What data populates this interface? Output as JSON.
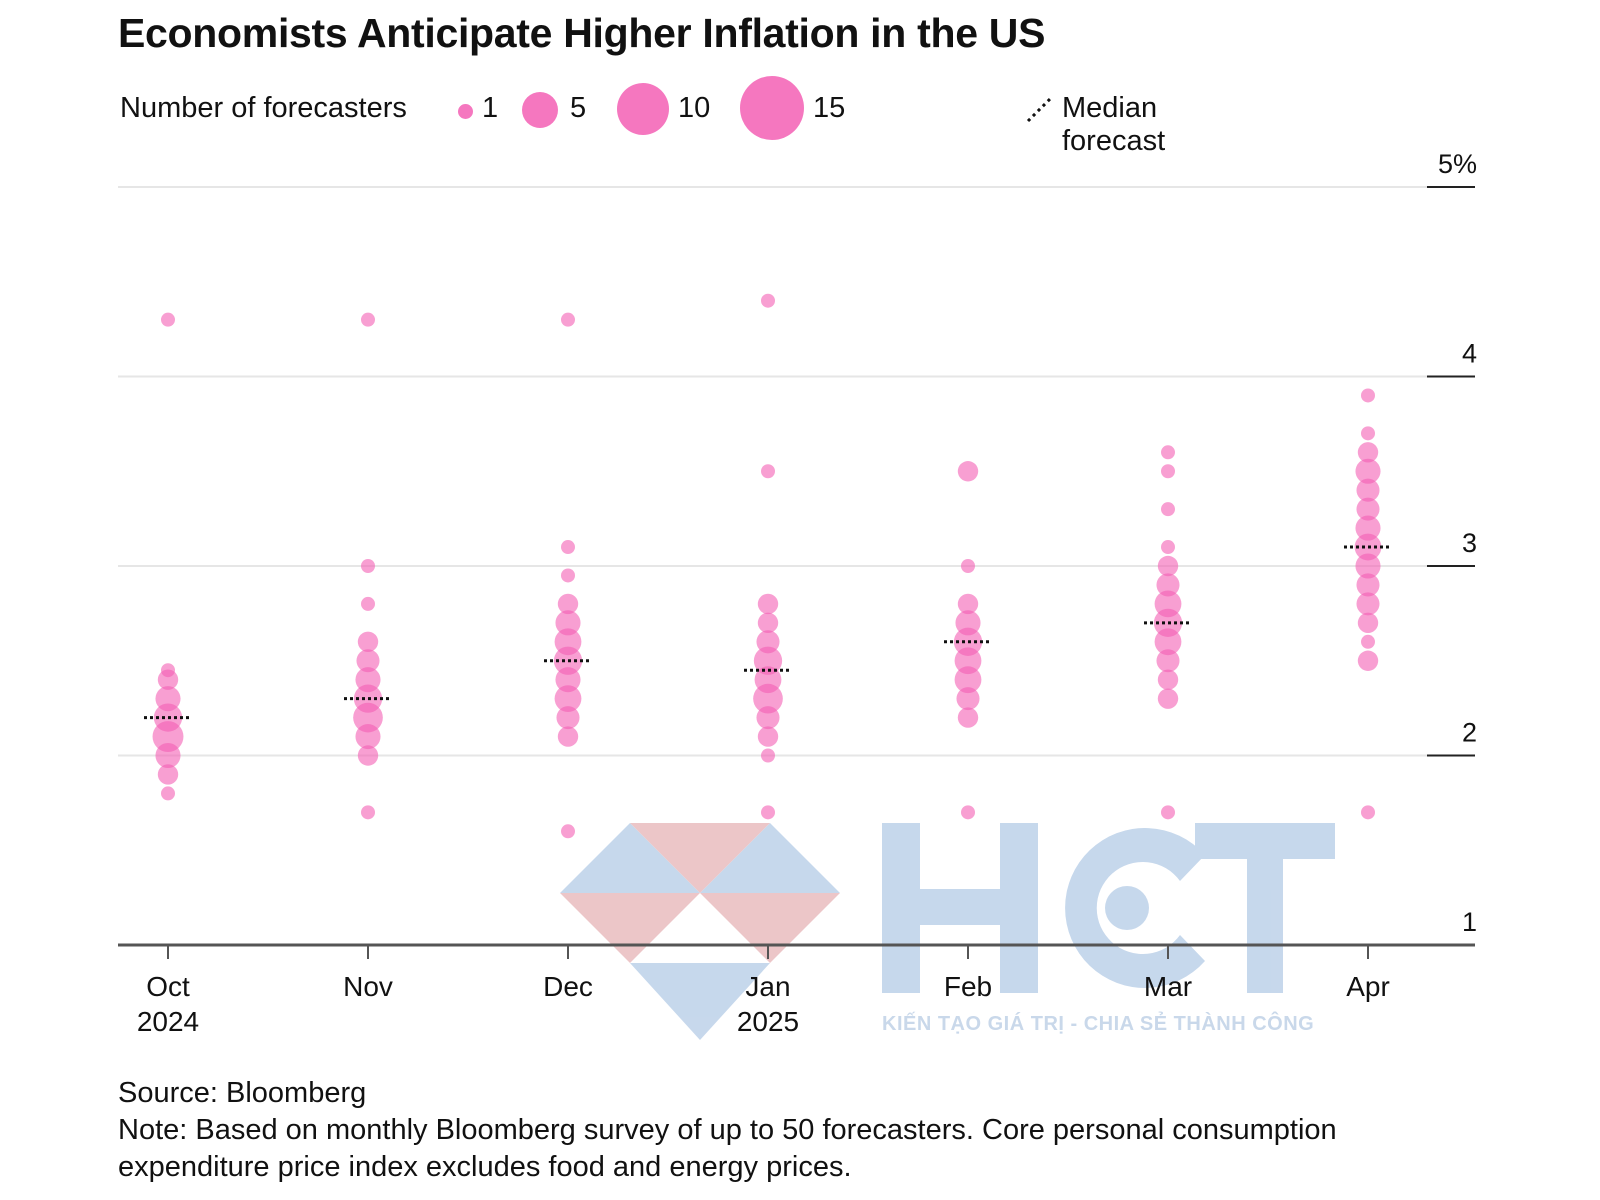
{
  "title": "Economists Anticipate Higher Inflation in the US",
  "legend": {
    "size_label": "Number of forecasters",
    "sizes": [
      {
        "label": "1",
        "count": 1
      },
      {
        "label": "5",
        "count": 5
      },
      {
        "label": "10",
        "count": 10
      },
      {
        "label": "15",
        "count": 15
      }
    ],
    "median_label": "Median forecast"
  },
  "colors": {
    "dot": "#f35fb4",
    "median": "#111111",
    "grid": "#e6e6e6",
    "axis": "#555555",
    "watermark_blue": "#c4d6eb",
    "watermark_red": "#ecc3c6"
  },
  "footer": {
    "source": "Source: Bloomberg",
    "note": "Note: Based on monthly Bloomberg survey of up to 50 forecasters. Core personal consumption expenditure price index excludes food and energy prices."
  },
  "watermark": {
    "letters": "HCT",
    "tagline": "KIẾN TẠO GIÁ TRỊ - CHIA SẺ THÀNH CÔNG"
  },
  "chart_data": {
    "type": "scatter",
    "y_ticks": [
      {
        "value": 1,
        "label": "1"
      },
      {
        "value": 2,
        "label": "2"
      },
      {
        "value": 3,
        "label": "3"
      },
      {
        "value": 4,
        "label": "4"
      },
      {
        "value": 5,
        "label": "5%"
      }
    ],
    "ylim": [
      1,
      5
    ],
    "grid": true,
    "categories": [
      {
        "label": "Oct",
        "sublabel": "2024",
        "median": 2.2,
        "points": [
          [
            4.3,
            1
          ],
          [
            2.45,
            1
          ],
          [
            2.4,
            2
          ],
          [
            2.3,
            4
          ],
          [
            2.2,
            6
          ],
          [
            2.1,
            8
          ],
          [
            2.0,
            4
          ],
          [
            1.9,
            2
          ],
          [
            1.8,
            1
          ]
        ]
      },
      {
        "label": "Nov",
        "sublabel": "",
        "median": 2.3,
        "points": [
          [
            4.3,
            1
          ],
          [
            3.0,
            1
          ],
          [
            2.8,
            1
          ],
          [
            2.6,
            2
          ],
          [
            2.5,
            3
          ],
          [
            2.4,
            4
          ],
          [
            2.3,
            6
          ],
          [
            2.2,
            7
          ],
          [
            2.1,
            4
          ],
          [
            2.0,
            2
          ],
          [
            1.7,
            1
          ]
        ]
      },
      {
        "label": "Dec",
        "sublabel": "",
        "median": 2.5,
        "points": [
          [
            4.3,
            1
          ],
          [
            3.1,
            1
          ],
          [
            2.95,
            1
          ],
          [
            2.8,
            2
          ],
          [
            2.7,
            4
          ],
          [
            2.6,
            5
          ],
          [
            2.5,
            6
          ],
          [
            2.4,
            4
          ],
          [
            2.3,
            5
          ],
          [
            2.2,
            3
          ],
          [
            2.1,
            2
          ],
          [
            1.6,
            1
          ]
        ]
      },
      {
        "label": "Jan",
        "sublabel": "2025",
        "median": 2.45,
        "points": [
          [
            4.4,
            1
          ],
          [
            3.5,
            1
          ],
          [
            2.8,
            2
          ],
          [
            2.7,
            2
          ],
          [
            2.6,
            3
          ],
          [
            2.5,
            6
          ],
          [
            2.4,
            5
          ],
          [
            2.3,
            7
          ],
          [
            2.2,
            3
          ],
          [
            2.1,
            2
          ],
          [
            2.0,
            1
          ],
          [
            1.7,
            1
          ]
        ]
      },
      {
        "label": "Feb",
        "sublabel": "",
        "median": 2.6,
        "points": [
          [
            3.5,
            2
          ],
          [
            3.0,
            1
          ],
          [
            2.8,
            2
          ],
          [
            2.7,
            4
          ],
          [
            2.6,
            6
          ],
          [
            2.5,
            5
          ],
          [
            2.4,
            5
          ],
          [
            2.3,
            3
          ],
          [
            2.2,
            2
          ],
          [
            1.7,
            1
          ]
        ]
      },
      {
        "label": "Mar",
        "sublabel": "",
        "median": 2.7,
        "points": [
          [
            3.6,
            1
          ],
          [
            3.5,
            1
          ],
          [
            3.3,
            1
          ],
          [
            3.1,
            1
          ],
          [
            3.0,
            2
          ],
          [
            2.9,
            3
          ],
          [
            2.8,
            5
          ],
          [
            2.7,
            6
          ],
          [
            2.6,
            5
          ],
          [
            2.5,
            3
          ],
          [
            2.4,
            2
          ],
          [
            2.3,
            2
          ],
          [
            1.7,
            1
          ]
        ]
      },
      {
        "label": "Apr",
        "sublabel": "",
        "median": 3.1,
        "points": [
          [
            3.9,
            1
          ],
          [
            3.7,
            1
          ],
          [
            3.6,
            2
          ],
          [
            3.5,
            4
          ],
          [
            3.4,
            3
          ],
          [
            3.3,
            3
          ],
          [
            3.2,
            4
          ],
          [
            3.1,
            5
          ],
          [
            3.0,
            4
          ],
          [
            2.9,
            3
          ],
          [
            2.8,
            3
          ],
          [
            2.7,
            2
          ],
          [
            2.6,
            1
          ],
          [
            2.5,
            2
          ],
          [
            1.7,
            1
          ]
        ]
      }
    ]
  }
}
